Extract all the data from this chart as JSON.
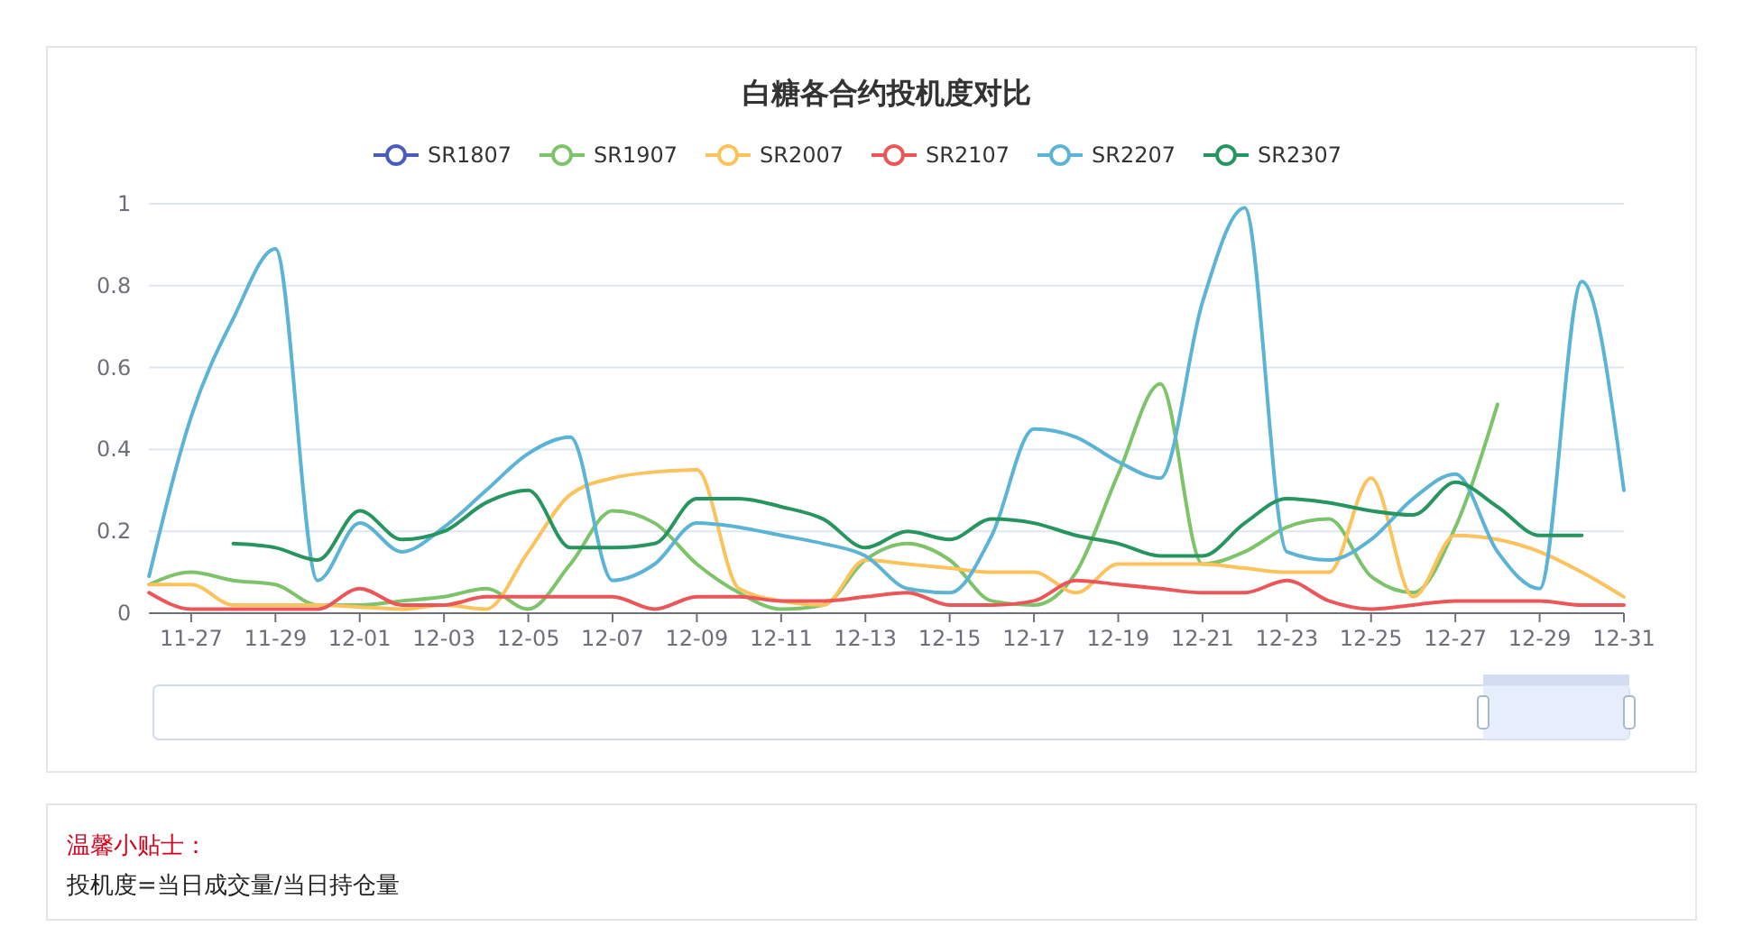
{
  "chart_data": {
    "type": "line",
    "title": "白糖各合约投机度对比",
    "categories": [
      null,
      "11-27",
      null,
      "11-29",
      null,
      "12-01",
      null,
      "12-03",
      null,
      "12-05",
      null,
      "12-07",
      null,
      "12-09",
      null,
      "12-11",
      null,
      "12-13",
      null,
      "12-15",
      null,
      "12-17",
      null,
      "12-19",
      null,
      "12-21",
      null,
      "12-23",
      null,
      "12-25",
      null,
      "12-27",
      null,
      "12-29",
      null,
      "12-31"
    ],
    "series": [
      {
        "name": "SR1807",
        "color": "#4a5cbf",
        "values": [
          null,
          null,
          null,
          null,
          null,
          null,
          null,
          null,
          null,
          null,
          null,
          null,
          null,
          null,
          null,
          null,
          null,
          null,
          null,
          null,
          null,
          null,
          null,
          null,
          null,
          null,
          null,
          null,
          null,
          null,
          null,
          null,
          null,
          null,
          null,
          null
        ]
      },
      {
        "name": "SR1907",
        "color": "#7cc36a",
        "values": [
          0.07,
          0.1,
          0.08,
          0.07,
          0.02,
          0.02,
          0.03,
          0.04,
          0.06,
          0.01,
          0.12,
          0.25,
          0.22,
          0.12,
          0.05,
          0.01,
          0.02,
          0.13,
          0.17,
          0.13,
          0.03,
          0.02,
          0.1,
          0.34,
          0.56,
          0.12,
          0.15,
          0.21,
          0.23,
          0.09,
          0.05,
          0.21,
          0.51,
          null,
          null,
          null
        ]
      },
      {
        "name": "SR2007",
        "color": "#fcc25c",
        "values": [
          0.07,
          0.07,
          0.02,
          0.02,
          0.02,
          0.015,
          0.01,
          0.02,
          0.01,
          0.15,
          0.29,
          0.33,
          0.345,
          0.35,
          0.06,
          0.03,
          0.02,
          0.13,
          0.12,
          0.11,
          0.1,
          0.1,
          0.05,
          0.12,
          0.12,
          0.12,
          0.11,
          0.1,
          0.1,
          0.33,
          0.04,
          0.19,
          0.18,
          0.15,
          0.1,
          0.04
        ]
      },
      {
        "name": "SR2107",
        "color": "#ec5659",
        "values": [
          0.05,
          0.01,
          0.01,
          0.01,
          0.01,
          0.06,
          0.02,
          0.02,
          0.04,
          0.04,
          0.04,
          0.04,
          0.01,
          0.04,
          0.04,
          0.03,
          0.03,
          0.04,
          0.05,
          0.02,
          0.02,
          0.03,
          0.08,
          0.07,
          0.06,
          0.05,
          0.05,
          0.08,
          0.03,
          0.01,
          0.02,
          0.03,
          0.03,
          0.03,
          0.02,
          0.02
        ]
      },
      {
        "name": "SR2207",
        "color": "#5bb4d6",
        "values": [
          0.09,
          0.48,
          0.72,
          0.89,
          0.08,
          0.22,
          0.15,
          0.21,
          0.3,
          0.39,
          0.43,
          0.08,
          0.12,
          0.22,
          0.21,
          0.19,
          0.17,
          0.14,
          0.06,
          0.05,
          0.19,
          0.45,
          0.43,
          0.37,
          0.33,
          0.76,
          0.99,
          0.15,
          0.13,
          0.18,
          0.28,
          0.34,
          0.15,
          0.06,
          0.81,
          0.3
        ]
      },
      {
        "name": "SR2307",
        "color": "#27955f",
        "values": [
          null,
          null,
          0.17,
          0.16,
          0.13,
          0.25,
          0.18,
          0.2,
          0.27,
          0.3,
          0.16,
          0.16,
          0.17,
          0.28,
          0.28,
          0.26,
          0.23,
          0.16,
          0.2,
          0.18,
          0.23,
          0.22,
          0.19,
          0.17,
          0.14,
          0.14,
          0.22,
          0.28,
          0.27,
          0.25,
          0.24,
          0.32,
          0.26,
          0.19,
          0.19,
          null
        ]
      }
    ],
    "ylim": [
      0,
      1
    ],
    "yticks": [
      0,
      0.2,
      0.4,
      0.6,
      0.8,
      1
    ],
    "grid": "y",
    "legend": "top",
    "annotations": [
      "温馨小贴士：",
      "投机度=当日成交量/当日持仓量"
    ]
  }
}
